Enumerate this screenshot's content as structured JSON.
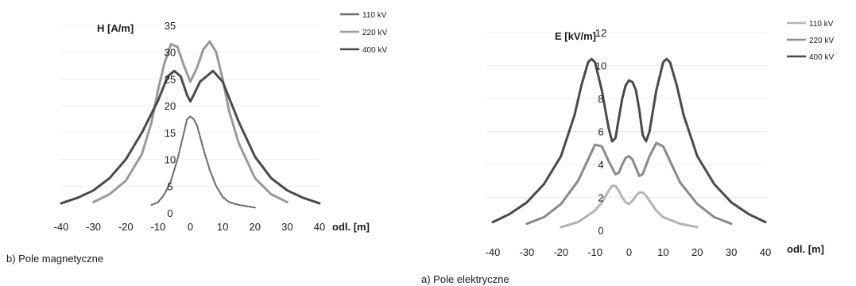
{
  "chart_data": [
    {
      "type": "line",
      "caption": "b) Pole magnetyczne",
      "ylabel": "H [A/m]",
      "xlabel": "odl. [m]",
      "xlim": [
        -40,
        40
      ],
      "ylim": [
        0,
        35
      ],
      "xticks": [
        -40,
        -30,
        -20,
        -10,
        0,
        10,
        20,
        30,
        40
      ],
      "yticks": [
        0,
        5,
        10,
        15,
        20,
        25,
        30,
        35
      ],
      "grid": "horizontal",
      "legend_position": "top-right",
      "series": [
        {
          "name": "110 kV",
          "color": "#6a6a6a",
          "style": "dotted",
          "x": [
            -12,
            -10,
            -8,
            -6,
            -4,
            -2,
            -1,
            0,
            1,
            2,
            4,
            6,
            8,
            10,
            12,
            15,
            18,
            20
          ],
          "y": [
            1.5,
            2,
            3.5,
            6,
            10,
            15,
            17.5,
            18,
            17.5,
            16.5,
            12,
            8,
            5,
            3,
            2,
            1.5,
            1.2,
            1
          ]
        },
        {
          "name": "220 kV",
          "color": "#9a9a9a",
          "style": "solid",
          "x": [
            -30,
            -25,
            -20,
            -15,
            -12,
            -10,
            -8,
            -6,
            -4,
            -2,
            0,
            2,
            4,
            6,
            8,
            10,
            12,
            15,
            20,
            25,
            30
          ],
          "y": [
            2,
            3.5,
            6,
            11,
            17,
            23,
            28,
            31.5,
            31,
            27.5,
            24.5,
            27,
            30.5,
            32,
            30,
            25,
            19,
            13,
            6.5,
            3.5,
            2
          ]
        },
        {
          "name": "400 kV",
          "color": "#4a4a4a",
          "style": "solid",
          "x": [
            -40,
            -35,
            -30,
            -25,
            -20,
            -15,
            -10,
            -7,
            -5,
            -3,
            -1,
            0,
            1,
            3,
            5,
            7,
            10,
            15,
            20,
            25,
            30,
            35,
            40
          ],
          "y": [
            1.8,
            2.8,
            4.2,
            6.5,
            10,
            15,
            21,
            25.5,
            26.5,
            25.5,
            22,
            20.8,
            22,
            24.5,
            25.5,
            26.5,
            24.5,
            17,
            10.5,
            6.5,
            4.2,
            2.8,
            1.8
          ]
        }
      ]
    },
    {
      "type": "line",
      "caption": "a) Pole elektryczne",
      "ylabel": "E [kV/m]",
      "xlabel": "odl. [m]",
      "xlim": [
        -40,
        40
      ],
      "ylim": [
        0,
        12
      ],
      "xticks": [
        -40,
        -30,
        -20,
        -10,
        0,
        10,
        20,
        30,
        40
      ],
      "yticks": [
        0,
        2,
        4,
        6,
        8,
        10,
        12
      ],
      "grid": "horizontal",
      "legend_position": "top-right",
      "series": [
        {
          "name": "110 kV",
          "color": "#b4b4b4",
          "style": "solid",
          "x": [
            -20,
            -15,
            -10,
            -8,
            -6,
            -5,
            -4,
            -3,
            -2,
            -1,
            0,
            1,
            2,
            3,
            4,
            5,
            6,
            8,
            10,
            15,
            20
          ],
          "y": [
            0.2,
            0.5,
            1.2,
            1.7,
            2.4,
            2.7,
            2.7,
            2.4,
            2,
            1.7,
            1.6,
            1.8,
            2.1,
            2.3,
            2.3,
            2.1,
            1.8,
            1.2,
            0.8,
            0.4,
            0.2
          ]
        },
        {
          "name": "220 kV",
          "color": "#8a8a8a",
          "style": "solid",
          "x": [
            -30,
            -25,
            -20,
            -15,
            -12,
            -10,
            -8,
            -6,
            -4,
            -3,
            -2,
            -1,
            0,
            1,
            2,
            3,
            4,
            6,
            8,
            10,
            12,
            15,
            20,
            25,
            30
          ],
          "y": [
            0.4,
            0.8,
            1.6,
            3,
            4.3,
            5.2,
            5.1,
            4.2,
            3.4,
            3.5,
            4,
            4.4,
            4.5,
            4.3,
            3.8,
            3.3,
            3.4,
            4.5,
            5.3,
            5.1,
            4.2,
            2.9,
            1.6,
            0.8,
            0.4
          ]
        },
        {
          "name": "400 kV",
          "color": "#4a4a4a",
          "style": "solid",
          "x": [
            -40,
            -35,
            -30,
            -25,
            -20,
            -16,
            -14,
            -12,
            -11,
            -10,
            -8,
            -6,
            -5,
            -4,
            -3,
            -2,
            -1,
            0,
            1,
            2,
            3,
            4,
            5,
            6,
            8,
            10,
            11,
            12,
            14,
            16,
            20,
            25,
            30,
            35,
            40
          ],
          "y": [
            0.5,
            1,
            1.7,
            2.8,
            4.5,
            7,
            8.8,
            10.2,
            10.4,
            10.2,
            8.5,
            6.2,
            5.4,
            5.6,
            6.8,
            8,
            8.8,
            9.1,
            9,
            8.5,
            7.3,
            5.8,
            5.4,
            6,
            8.5,
            10.2,
            10.4,
            10.2,
            8.8,
            7,
            4.5,
            2.8,
            1.7,
            1,
            0.5
          ]
        }
      ]
    }
  ]
}
